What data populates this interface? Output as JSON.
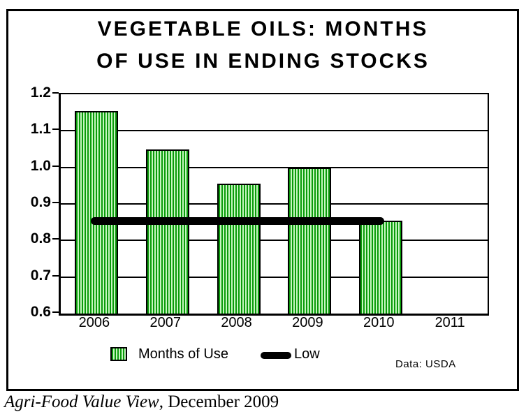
{
  "chart_data": {
    "type": "bar",
    "title_lines": [
      "VEGETABLE OILS: MONTHS",
      "OF USE IN ENDING STOCKS"
    ],
    "categories": [
      "2006",
      "2007",
      "2008",
      "2009",
      "2010",
      "2011"
    ],
    "series": [
      {
        "name": "Months of Use",
        "type": "bar",
        "values": [
          1.155,
          1.05,
          0.955,
          1.0,
          0.855,
          null
        ]
      },
      {
        "name": "Low",
        "type": "line",
        "value": 0.855,
        "from_category": "2006",
        "to_category": "2010"
      }
    ],
    "ylim": [
      0.6,
      1.2
    ],
    "yticks": [
      "1.2",
      "1.1",
      "1.0",
      "0.9",
      "0.8",
      "0.7",
      "0.6"
    ],
    "grid": true,
    "legend_position": "bottom",
    "colors": {
      "bar_stripe_dark": "#0a9b0a",
      "bar_stripe_light": "#c6f6c0",
      "bar_border": "#000000",
      "low_line": "#000000",
      "text": "#000000"
    }
  },
  "legend": {
    "bars_label": "Months of Use",
    "low_label": "Low"
  },
  "source_note": "Data: USDA",
  "caption": {
    "italic_part": "Agri-Food Value View",
    "regular_part": ", December 2009"
  }
}
